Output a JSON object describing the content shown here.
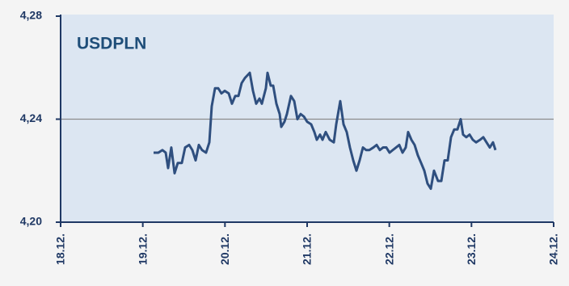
{
  "chart_data": {
    "type": "line",
    "title": "USDPLN",
    "xlim": [
      0,
      6
    ],
    "xticks": [
      {
        "value": 0,
        "label": "18.12."
      },
      {
        "value": 1,
        "label": "19.12."
      },
      {
        "value": 2,
        "label": "20.12."
      },
      {
        "value": 3,
        "label": "21.12."
      },
      {
        "value": 4,
        "label": "22.12."
      },
      {
        "value": 5,
        "label": "23.12."
      },
      {
        "value": 6,
        "label": "24.12."
      }
    ],
    "ylim": [
      4.2,
      4.28
    ],
    "yticks": [
      {
        "value": 4.2,
        "label": "4,20"
      },
      {
        "value": 4.24,
        "label": "4,24"
      },
      {
        "value": 4.28,
        "label": "4,28"
      }
    ],
    "grid": true,
    "color": "#2f4f7f",
    "x": [
      1.131,
      1.19,
      1.239,
      1.279,
      1.308,
      1.347,
      1.387,
      1.426,
      1.475,
      1.515,
      1.564,
      1.603,
      1.643,
      1.682,
      1.721,
      1.77,
      1.81,
      1.839,
      1.879,
      1.918,
      1.957,
      1.997,
      2.046,
      2.085,
      2.125,
      2.164,
      2.203,
      2.243,
      2.302,
      2.341,
      2.38,
      2.42,
      2.449,
      2.498,
      2.518,
      2.557,
      2.587,
      2.626,
      2.666,
      2.685,
      2.724,
      2.754,
      2.803,
      2.843,
      2.882,
      2.921,
      2.961,
      3.0,
      3.049,
      3.088,
      3.118,
      3.157,
      3.187,
      3.226,
      3.275,
      3.325,
      3.354,
      3.403,
      3.443,
      3.482,
      3.521,
      3.561,
      3.6,
      3.639,
      3.679,
      3.718,
      3.757,
      3.806,
      3.846,
      3.885,
      3.924,
      3.964,
      4.003,
      4.042,
      4.082,
      4.121,
      4.161,
      4.2,
      4.229,
      4.269,
      4.308,
      4.347,
      4.387,
      4.426,
      4.465,
      4.505,
      4.544,
      4.593,
      4.633,
      4.672,
      4.711,
      4.751,
      4.79,
      4.829,
      4.869,
      4.898,
      4.937,
      4.977,
      5.016,
      5.056,
      5.105,
      5.144,
      5.183,
      5.223,
      5.262,
      5.292
    ],
    "values": [
      4.227,
      4.227,
      4.228,
      4.227,
      4.221,
      4.229,
      4.219,
      4.223,
      4.223,
      4.229,
      4.23,
      4.228,
      4.224,
      4.23,
      4.228,
      4.227,
      4.231,
      4.245,
      4.252,
      4.252,
      4.25,
      4.251,
      4.25,
      4.246,
      4.249,
      4.249,
      4.254,
      4.256,
      4.258,
      4.251,
      4.246,
      4.248,
      4.246,
      4.252,
      4.258,
      4.253,
      4.253,
      4.246,
      4.242,
      4.237,
      4.239,
      4.242,
      4.249,
      4.247,
      4.24,
      4.242,
      4.241,
      4.239,
      4.238,
      4.235,
      4.232,
      4.234,
      4.232,
      4.235,
      4.232,
      4.231,
      4.238,
      4.247,
      4.238,
      4.235,
      4.229,
      4.224,
      4.22,
      4.224,
      4.229,
      4.228,
      4.228,
      4.229,
      4.23,
      4.228,
      4.229,
      4.229,
      4.227,
      4.228,
      4.229,
      4.23,
      4.227,
      4.229,
      4.235,
      4.232,
      4.23,
      4.226,
      4.223,
      4.22,
      4.215,
      4.213,
      4.22,
      4.216,
      4.216,
      4.224,
      4.224,
      4.233,
      4.236,
      4.236,
      4.24,
      4.234,
      4.233,
      4.234,
      4.232,
      4.231,
      4.232,
      4.233,
      4.231,
      4.229,
      4.231,
      4.228
    ]
  }
}
